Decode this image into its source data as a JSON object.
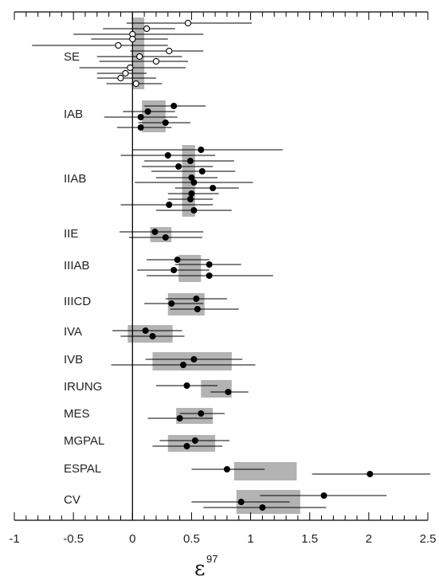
{
  "chart_data": {
    "type": "scatter",
    "title": "",
    "xlabel": "ε",
    "xlabel_superscript": "97",
    "ylabel": "",
    "xlim": [
      -1,
      2.5
    ],
    "x_ticks": [
      "-1",
      "-0.5",
      "0",
      "0.5",
      "1",
      "1.5",
      "2",
      "2.5"
    ],
    "grid": false,
    "reference_line_x": 0,
    "colors": {
      "axis": "#000000",
      "band": "#b3b3b3",
      "errorbar": "#000000",
      "point_open_fill": "#ffffff",
      "point_filled": "#000000"
    },
    "groups": [
      {
        "label": "SE",
        "band": [
          0.0,
          0.1
        ],
        "marker": "open",
        "points": [
          {
            "x": 0.47,
            "lo": -0.05,
            "hi": 1.01
          },
          {
            "x": 0.12,
            "lo": -0.25,
            "hi": 0.36
          },
          {
            "x": 0.0,
            "lo": -0.5,
            "hi": 0.6
          },
          {
            "x": 0.0,
            "lo": -0.35,
            "hi": 0.3
          },
          {
            "x": -0.12,
            "lo": -0.85,
            "hi": 0.3
          },
          {
            "x": 0.31,
            "lo": -0.02,
            "hi": 0.6
          },
          {
            "x": 0.06,
            "lo": -0.3,
            "hi": 0.42
          },
          {
            "x": 0.2,
            "lo": -0.28,
            "hi": 0.47
          },
          {
            "x": -0.02,
            "lo": -0.45,
            "hi": 0.45
          },
          {
            "x": -0.06,
            "lo": -0.3,
            "hi": 0.12
          },
          {
            "x": -0.1,
            "lo": -0.3,
            "hi": 0.2
          },
          {
            "x": 0.03,
            "lo": -0.22,
            "hi": 0.25
          }
        ]
      },
      {
        "label": "IAB",
        "band": [
          0.08,
          0.28
        ],
        "marker": "filled",
        "points": [
          {
            "x": 0.35,
            "lo": 0.1,
            "hi": 0.62
          },
          {
            "x": 0.13,
            "lo": -0.08,
            "hi": 0.36
          },
          {
            "x": 0.07,
            "lo": -0.24,
            "hi": 0.38
          },
          {
            "x": 0.28,
            "lo": 0.05,
            "hi": 0.49
          },
          {
            "x": 0.07,
            "lo": -0.13,
            "hi": 0.33
          }
        ]
      },
      {
        "label": "IIAB",
        "band": [
          0.42,
          0.53
        ],
        "marker": "filled",
        "points": [
          {
            "x": 0.58,
            "lo": 0.0,
            "hi": 1.27
          },
          {
            "x": 0.3,
            "lo": -0.1,
            "hi": 0.7
          },
          {
            "x": 0.49,
            "lo": 0.1,
            "hi": 0.86
          },
          {
            "x": 0.39,
            "lo": 0.08,
            "hi": 0.68
          },
          {
            "x": 0.59,
            "lo": 0.16,
            "hi": 0.87
          },
          {
            "x": 0.5,
            "lo": 0.2,
            "hi": 0.72
          },
          {
            "x": 0.52,
            "lo": 0.02,
            "hi": 1.02
          },
          {
            "x": 0.68,
            "lo": 0.36,
            "hi": 0.9
          },
          {
            "x": 0.5,
            "lo": 0.3,
            "hi": 0.73
          },
          {
            "x": 0.49,
            "lo": 0.3,
            "hi": 0.68
          },
          {
            "x": 0.31,
            "lo": -0.1,
            "hi": 0.68
          },
          {
            "x": 0.52,
            "lo": 0.2,
            "hi": 0.84
          }
        ]
      },
      {
        "label": "IIE",
        "band": [
          0.15,
          0.33
        ],
        "marker": "filled",
        "points": [
          {
            "x": 0.19,
            "lo": -0.11,
            "hi": 0.6
          },
          {
            "x": 0.28,
            "lo": -0.03,
            "hi": 0.59
          }
        ]
      },
      {
        "label": "IIIAB",
        "band": [
          0.39,
          0.58
        ],
        "marker": "filled",
        "points": [
          {
            "x": 0.38,
            "lo": 0.12,
            "hi": 0.65
          },
          {
            "x": 0.65,
            "lo": 0.36,
            "hi": 0.92
          },
          {
            "x": 0.35,
            "lo": 0.04,
            "hi": 0.65
          },
          {
            "x": 0.65,
            "lo": 0.12,
            "hi": 1.19
          }
        ]
      },
      {
        "label": "IIICD",
        "band": [
          0.3,
          0.61
        ],
        "marker": "filled",
        "points": [
          {
            "x": 0.54,
            "lo": 0.28,
            "hi": 0.8
          },
          {
            "x": 0.33,
            "lo": 0.1,
            "hi": 0.6
          },
          {
            "x": 0.55,
            "lo": 0.32,
            "hi": 0.9
          }
        ]
      },
      {
        "label": "IVA",
        "band": [
          -0.04,
          0.34
        ],
        "marker": "filled",
        "points": [
          {
            "x": 0.11,
            "lo": -0.17,
            "hi": 0.42
          },
          {
            "x": 0.17,
            "lo": -0.1,
            "hi": 0.44
          }
        ]
      },
      {
        "label": "IVB",
        "band": [
          0.17,
          0.84
        ],
        "marker": "filled",
        "points": [
          {
            "x": 0.52,
            "lo": 0.11,
            "hi": 0.93
          },
          {
            "x": 0.43,
            "lo": -0.18,
            "hi": 1.04
          }
        ]
      },
      {
        "label": "IRUNG",
        "band": [
          0.58,
          0.84
        ],
        "marker": "filled",
        "points": [
          {
            "x": 0.46,
            "lo": 0.2,
            "hi": 0.72
          },
          {
            "x": 0.81,
            "lo": 0.66,
            "hi": 0.98
          }
        ]
      },
      {
        "label": "MES",
        "band": [
          0.37,
          0.68
        ],
        "marker": "filled",
        "points": [
          {
            "x": 0.58,
            "lo": 0.4,
            "hi": 0.78
          },
          {
            "x": 0.4,
            "lo": 0.13,
            "hi": 0.68
          }
        ]
      },
      {
        "label": "MGPAL",
        "band": [
          0.3,
          0.7
        ],
        "marker": "filled",
        "points": [
          {
            "x": 0.53,
            "lo": 0.23,
            "hi": 0.82
          },
          {
            "x": 0.46,
            "lo": 0.17,
            "hi": 0.76
          }
        ]
      },
      {
        "label": "ESPAL",
        "band": [
          0.86,
          1.39
        ],
        "marker": "filled",
        "points": [
          {
            "x": 0.8,
            "lo": 0.5,
            "hi": 1.12
          },
          {
            "x": 2.01,
            "lo": 1.52,
            "hi": 2.52
          }
        ]
      },
      {
        "label": "CV",
        "band": [
          0.88,
          1.42
        ],
        "marker": "filled",
        "points": [
          {
            "x": 1.62,
            "lo": 1.08,
            "hi": 2.15
          },
          {
            "x": 0.92,
            "lo": 0.5,
            "hi": 1.33
          },
          {
            "x": 1.1,
            "lo": 0.6,
            "hi": 1.64
          }
        ]
      }
    ]
  }
}
